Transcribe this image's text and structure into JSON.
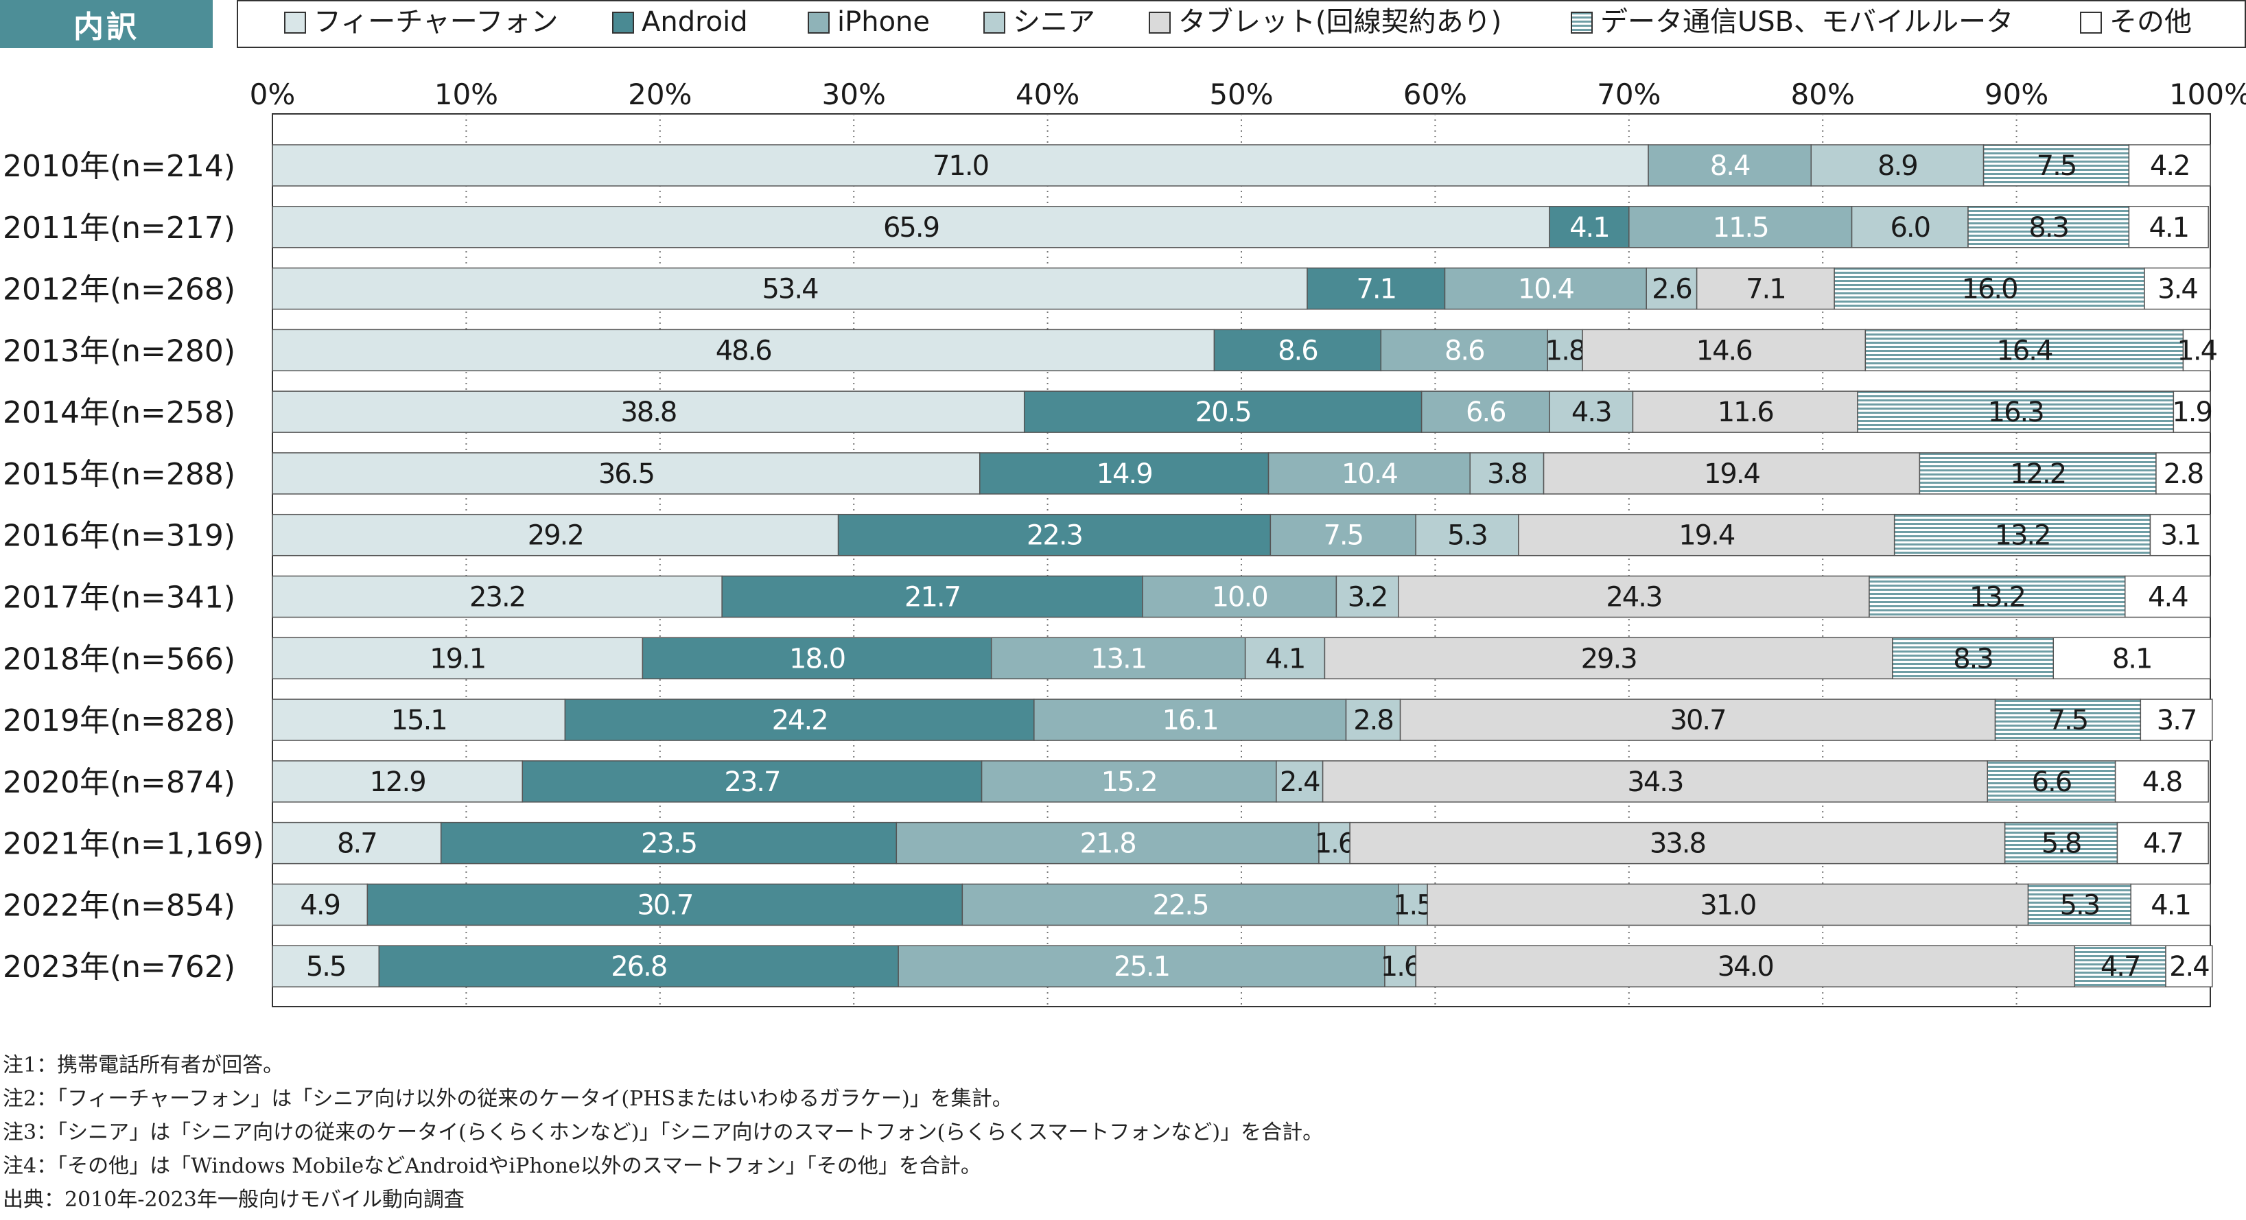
{
  "header": {
    "title": "内訳"
  },
  "legend": [
    {
      "name": "フィーチャーフォン",
      "color": "#d9e6e8",
      "pattern": "solid"
    },
    {
      "name": "Android",
      "color": "#4a8a93",
      "pattern": "solid"
    },
    {
      "name": "iPhone",
      "color": "#8fb3b8",
      "pattern": "solid"
    },
    {
      "name": "シニア",
      "color": "#b7cfd2",
      "pattern": "solid"
    },
    {
      "name": "タブレット(回線契約あり)",
      "color": "#dadada",
      "pattern": "solid"
    },
    {
      "name": "データ通信USB、モバイルルータ",
      "color": "#6f9ea5",
      "pattern": "stripes"
    },
    {
      "name": "その他",
      "color": "#ffffff",
      "pattern": "solid"
    }
  ],
  "chart_data": {
    "type": "bar",
    "orientation": "horizontal",
    "stacked": true,
    "xlim": [
      0,
      100
    ],
    "x_ticks": [
      "0%",
      "10%",
      "20%",
      "30%",
      "40%",
      "50%",
      "60%",
      "70%",
      "80%",
      "90%",
      "100%"
    ],
    "grid": "vertical dotted",
    "legend_position": "top",
    "categories": [
      "2010年(n=214)",
      "2011年(n=217)",
      "2012年(n=268)",
      "2013年(n=280)",
      "2014年(n=258)",
      "2015年(n=288)",
      "2016年(n=319)",
      "2017年(n=341)",
      "2018年(n=566)",
      "2019年(n=828)",
      "2020年(n=874)",
      "2021年(n=1,169)",
      "2022年(n=854)",
      "2023年(n=762)"
    ],
    "series": [
      {
        "name": "フィーチャーフォン",
        "values": [
          71.0,
          65.9,
          53.4,
          48.6,
          38.8,
          36.5,
          29.2,
          23.2,
          19.1,
          15.1,
          12.9,
          8.7,
          4.9,
          5.5
        ]
      },
      {
        "name": "Android",
        "values": [
          null,
          4.1,
          7.1,
          8.6,
          20.5,
          14.9,
          22.3,
          21.7,
          18.0,
          24.2,
          23.7,
          23.5,
          30.7,
          26.8
        ]
      },
      {
        "name": "iPhone",
        "values": [
          8.4,
          11.5,
          10.4,
          8.6,
          6.6,
          10.4,
          7.5,
          10.0,
          13.1,
          16.1,
          15.2,
          21.8,
          22.5,
          25.1
        ]
      },
      {
        "name": "シニア",
        "values": [
          8.9,
          6.0,
          2.6,
          1.8,
          4.3,
          3.8,
          5.3,
          3.2,
          4.1,
          2.8,
          2.4,
          1.6,
          1.5,
          1.6
        ]
      },
      {
        "name": "タブレット(回線契約あり)",
        "values": [
          null,
          null,
          7.1,
          14.6,
          11.6,
          19.4,
          19.4,
          24.3,
          29.3,
          30.7,
          34.3,
          33.8,
          31.0,
          34.0
        ]
      },
      {
        "name": "データ通信USB、モバイルルータ",
        "values": [
          7.5,
          8.3,
          16.0,
          16.4,
          16.3,
          12.2,
          13.2,
          13.2,
          8.3,
          7.5,
          6.6,
          5.8,
          5.3,
          4.7
        ]
      },
      {
        "name": "その他",
        "values": [
          4.2,
          4.1,
          3.4,
          1.4,
          1.9,
          2.8,
          3.1,
          4.4,
          8.1,
          3.7,
          4.8,
          4.7,
          4.1,
          2.4
        ]
      }
    ]
  },
  "notes": [
    "注1：携帯電話所有者が回答。",
    "注2：「フィーチャーフォン」は「シニア向け以外の従来のケータイ(PHSまたはいわゆるガラケー)」を集計。",
    "注3：「シニア」は「シニア向けの従来のケータイ(らくらくホンなど)」「シニア向けのスマートフォン(らくらくスマートフォンなど)」を合計。",
    "注4：「その他」は「Windows MobileなどAndroidやiPhone以外のスマートフォン」「その他」を合計。",
    "出典：2010年-2023年一般向けモバイル動向調査"
  ]
}
